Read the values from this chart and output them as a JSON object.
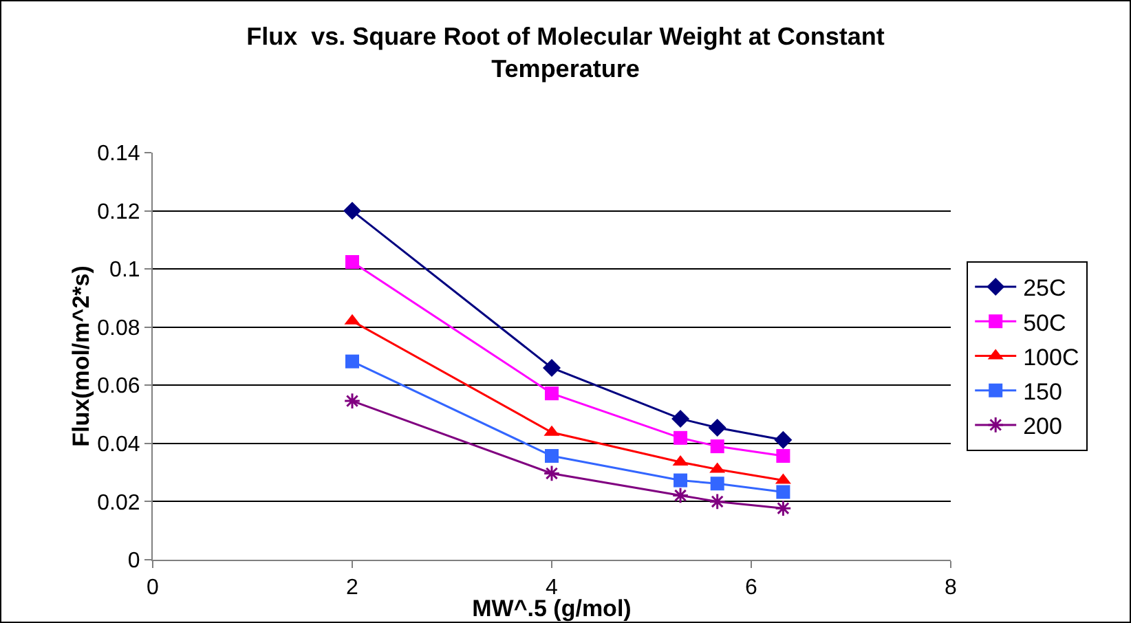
{
  "chart_data": {
    "type": "line",
    "title": "Flux  vs. Square Root of Molecular Weight at Constant Temperature",
    "xlabel": "MW^.5 (g/mol)",
    "ylabel": "Flux(mol/m^2*s)",
    "x": [
      2,
      4,
      5.29,
      5.66,
      6.32
    ],
    "series": [
      {
        "name": "25C",
        "color": "#000080",
        "marker": "diamond",
        "values": [
          0.12,
          0.066,
          0.0485,
          0.0454,
          0.0412
        ]
      },
      {
        "name": "50C",
        "color": "#ff00ff",
        "marker": "square",
        "values": [
          0.1024,
          0.0572,
          0.0419,
          0.039,
          0.0357
        ]
      },
      {
        "name": "100C",
        "color": "#ff0000",
        "marker": "triangle",
        "values": [
          0.0821,
          0.0438,
          0.0336,
          0.0311,
          0.0273
        ]
      },
      {
        "name": "150",
        "color": "#3366ff",
        "marker": "square",
        "values": [
          0.0682,
          0.0357,
          0.0273,
          0.0262,
          0.0233
        ]
      },
      {
        "name": "200",
        "color": "#800080",
        "marker": "cross",
        "values": [
          0.0546,
          0.0297,
          0.0221,
          0.02,
          0.0177
        ]
      }
    ],
    "xlim": [
      0,
      8
    ],
    "xticks": [
      0,
      2,
      4,
      6,
      8
    ],
    "ylim": [
      0,
      0.14
    ],
    "yticks": [
      0,
      0.02,
      0.04,
      0.06,
      0.08,
      0.1,
      0.12,
      0.14
    ],
    "grid": "y",
    "legend": "right",
    "line_style": "solid"
  }
}
